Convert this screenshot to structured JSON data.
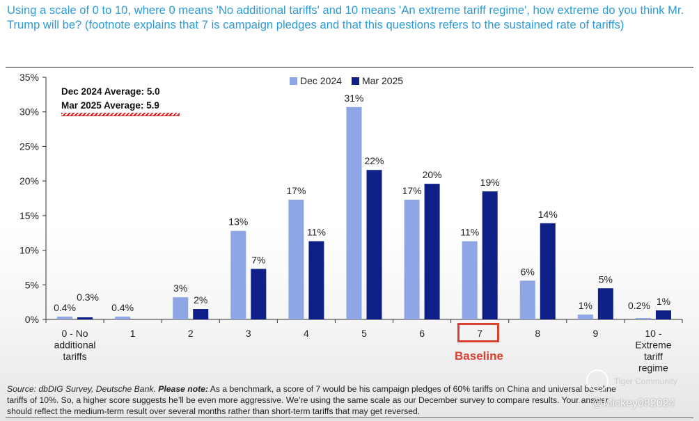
{
  "question": "Using a scale of 0 to 10, where 0 means 'No additional tariffs' and 10 means 'An extreme tariff regime', how extreme do you think Mr. Trump will be? (footnote explains that 7 is campaign pledges and that this questions refers to the sustained rate of tariffs)",
  "averages": {
    "dec": "Dec 2024 Average: 5.0",
    "mar": "Mar 2025 Average: 5.9"
  },
  "baseline_label": "Baseline",
  "source": {
    "source_label": "Source:",
    "source_text": " dbDIG Survey, Deutsche Bank.",
    "note_label": " Please note:",
    "note_text": " As a benchmark, a score of 7 would be his campaign pledges of 60% tariffs on China and universal baseline tariffs of 10%. So, a higher score suggests he’ll be even more aggressive. We’re using the same scale as our December survey to compare results. Your answer should reflect the medium-term result over several months rather than short-term tariffs that may get reversed."
  },
  "watermark": {
    "brand": "Tiger Community",
    "handle": "@Mickey082024"
  },
  "colors": {
    "dec": "#8ea6e4",
    "mar": "#0e1f87",
    "baseline": "#d9412f",
    "question": "#2b9bd6"
  },
  "chart_data": {
    "type": "bar",
    "categories": [
      [
        "0 - No",
        "additional",
        "tariffs"
      ],
      [
        "1"
      ],
      [
        "2"
      ],
      [
        "3"
      ],
      [
        "4"
      ],
      [
        "5"
      ],
      [
        "6"
      ],
      [
        "7"
      ],
      [
        "8"
      ],
      [
        "9"
      ],
      [
        "10 -",
        "Extreme",
        "tariff",
        "regime"
      ]
    ],
    "series": [
      {
        "name": "Dec 2024",
        "color": "#8ea6e4",
        "values": [
          0.4,
          0.4,
          3.2,
          12.8,
          17.3,
          30.7,
          17.3,
          11.3,
          5.6,
          0.7,
          0.2
        ],
        "labels": [
          "0.4%",
          "0.4%",
          "3%",
          "13%",
          "17%",
          "31%",
          "17%",
          "11%",
          "6%",
          "1%",
          "0.2%"
        ]
      },
      {
        "name": "Mar 2025",
        "color": "#0e1f87",
        "values": [
          0.3,
          null,
          1.5,
          7.3,
          11.3,
          21.6,
          19.6,
          18.5,
          13.9,
          4.5,
          1.3
        ],
        "labels": [
          "0.3%",
          null,
          "2%",
          "7%",
          "11%",
          "22%",
          "20%",
          "19%",
          "14%",
          "5%",
          "1%"
        ]
      }
    ],
    "yticks": [
      "0%",
      "5%",
      "10%",
      "15%",
      "20%",
      "25%",
      "30%",
      "35%"
    ],
    "ylim": [
      0,
      35
    ],
    "legend_position": "top-center",
    "grid": false
  }
}
